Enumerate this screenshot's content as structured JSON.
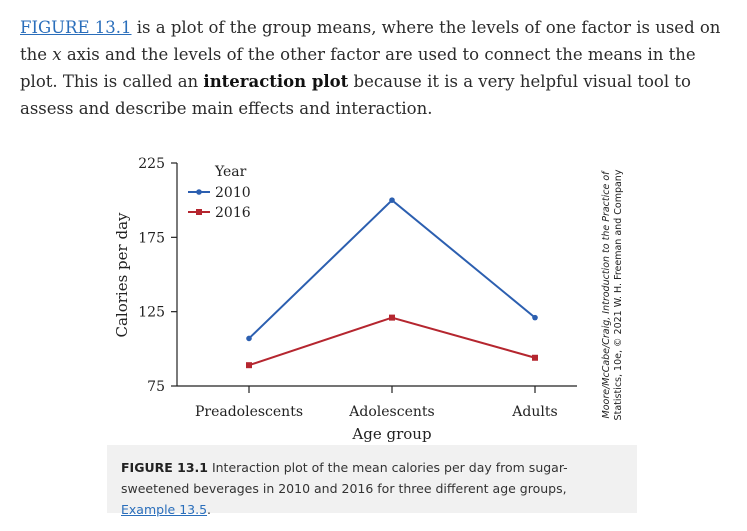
{
  "paragraph": {
    "figure_ref": "FIGURE 13.1",
    "text_1": " is a plot of the group means, where the levels of one factor is used on the ",
    "x_var": "x",
    "text_2": " axis and the levels of the other factor are used to connect the means in the plot. This is called an ",
    "term": "interaction plot",
    "text_3": " because it is a very helpful visual tool to assess and describe main effects and interaction."
  },
  "credit": {
    "line1": "Moore/McCabe/Craig, Introduction to the Practice of",
    "line2": "Statistics, 10e, © 2021 W. H. Freeman and Company"
  },
  "caption": {
    "label": "FIGURE 13.1",
    "text": " Interaction plot of the mean calories per day from sugar-sweetened beverages in 2010 and 2016 for three different age groups, ",
    "link": "Example 13.5",
    "end": "."
  },
  "chart_data": {
    "type": "line",
    "xlabel": "Age group",
    "ylabel": "Calories per day",
    "categories": [
      "Preadolescents",
      "Adolescents",
      "Adults"
    ],
    "ylim": [
      75,
      225
    ],
    "yticks": [
      75,
      125,
      175,
      225
    ],
    "legend_title": "Year",
    "legend_position": "top-left",
    "grid": false,
    "series": [
      {
        "name": "2010",
        "color": "#2c5fb0",
        "values": [
          107,
          200,
          121
        ]
      },
      {
        "name": "2016",
        "color": "#b5262f",
        "values": [
          89,
          121,
          94
        ]
      }
    ]
  }
}
